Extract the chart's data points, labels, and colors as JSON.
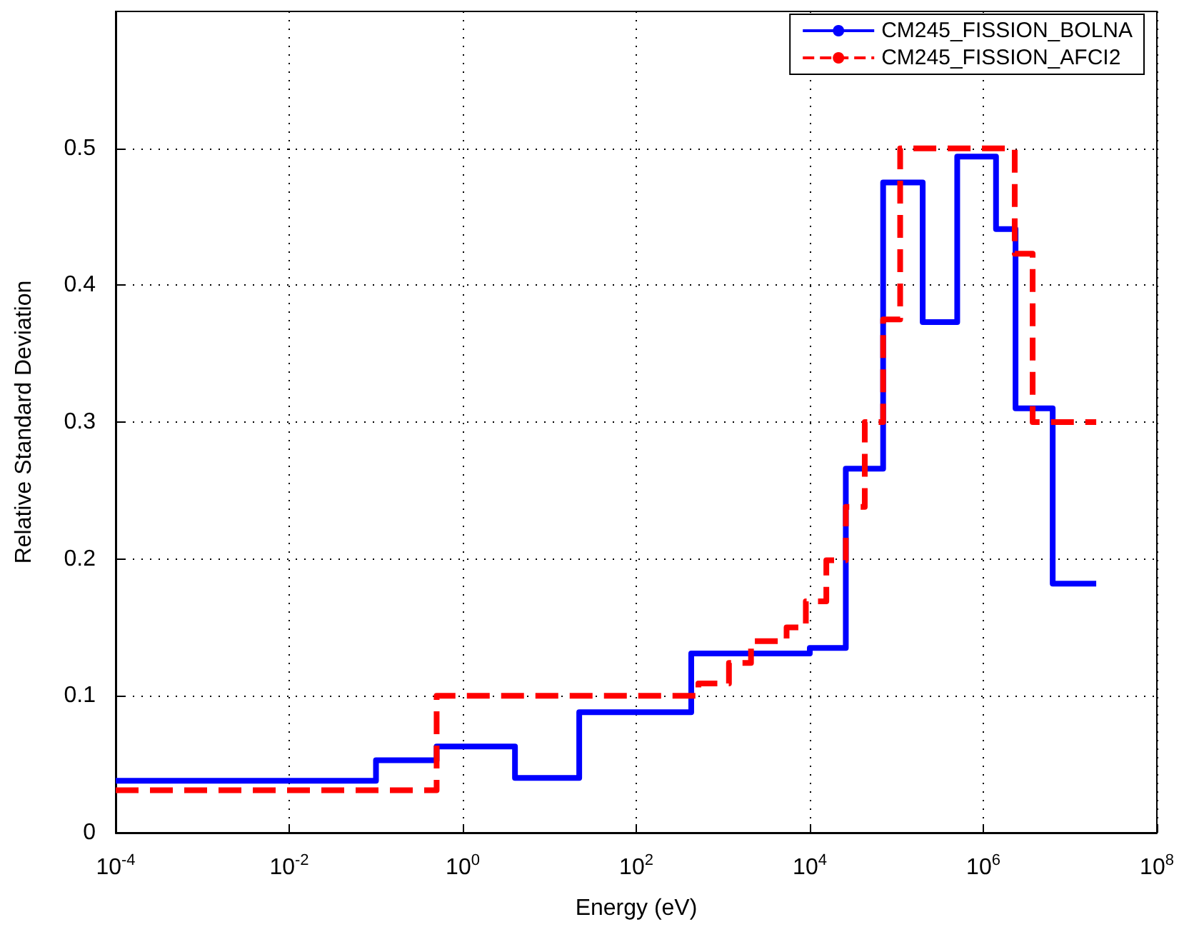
{
  "chart_data": {
    "type": "step",
    "xlabel": "Energy (eV)",
    "ylabel": "Relative Standard Deviation",
    "log": "x",
    "grid": true,
    "legend": "top right",
    "marker": "none",
    "xlim": [
      0.0001,
      100000000
    ],
    "ylim": [
      0,
      0.6
    ],
    "xticks": [
      {
        "value": 0.0001,
        "label": "10$^{-4}$"
      },
      {
        "value": 0.01,
        "label": "10$^{-2}$"
      },
      {
        "value": 1,
        "label": "10$^{0}$"
      },
      {
        "value": 100,
        "label": "10$^{2}$"
      },
      {
        "value": 10000,
        "label": "10$^{4}$"
      },
      {
        "value": 1000000,
        "label": "10$^{6}$"
      },
      {
        "value": 100000000,
        "label": "10$^{8}$"
      }
    ],
    "yticks": [
      0,
      0.1,
      0.2,
      0.3,
      0.4,
      0.5
    ],
    "series": [
      {
        "name": "CM245_FISSION_BOLNA",
        "color": "#0000ff",
        "line_style": "solid",
        "x": [
          0.0001,
          0.1,
          0.5,
          4,
          22,
          430,
          10000,
          26000,
          70000,
          200000,
          500000,
          1400000,
          2350000,
          6300000,
          20000000
        ],
        "values": [
          0.038,
          0.053,
          0.063,
          0.04,
          0.088,
          0.131,
          0.135,
          0.266,
          0.475,
          0.373,
          0.494,
          0.441,
          0.31,
          0.182,
          0.182
        ]
      },
      {
        "name": "CM245_FISSION_AFCI2",
        "color": "#ff0000",
        "line_style": "dashed",
        "x": [
          0.0001,
          0.5,
          520,
          1170,
          2100,
          5400,
          9000,
          15500,
          26000,
          43000,
          70000,
          110000,
          2300000,
          3700000,
          20000000
        ],
        "values": [
          0.031,
          0.1,
          0.109,
          0.124,
          0.14,
          0.15,
          0.169,
          0.199,
          0.238,
          0.3,
          0.375,
          0.5,
          0.423,
          0.3,
          0.3
        ]
      }
    ]
  }
}
